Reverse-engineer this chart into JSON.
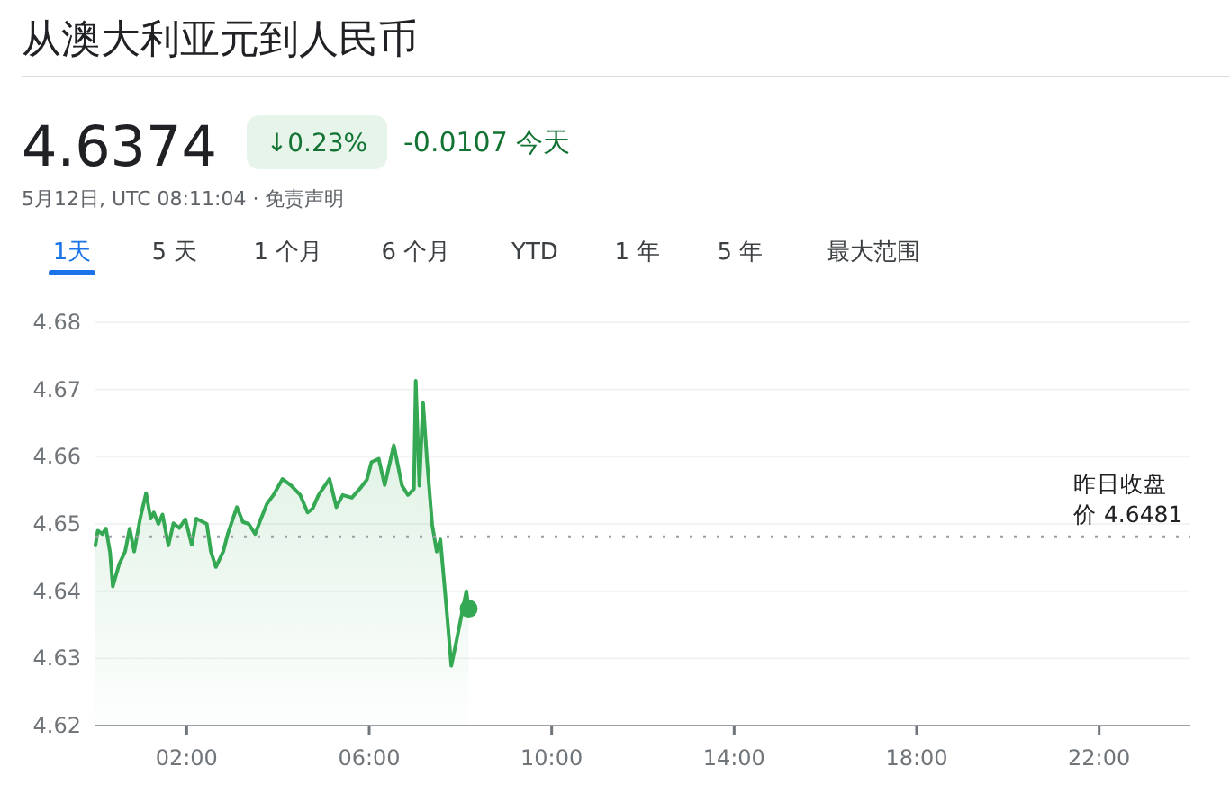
{
  "chart_data": {
    "type": "area",
    "title": "从澳大利亚元到人民币",
    "annotations": [
      "4.6374",
      "↓0.23%",
      "-0.0107 今天",
      "5月12日, UTC 08:11:04 · 免责声明",
      "1天",
      "5 天",
      "1 个月",
      "6 个月",
      "YTD",
      "1 年",
      "5 年",
      "最大范围"
    ],
    "xlim": [
      0,
      24
    ],
    "xticks": [
      {
        "value": 2,
        "label": "02:00"
      },
      {
        "value": 6,
        "label": "06:00"
      },
      {
        "value": 10,
        "label": "10:00"
      },
      {
        "value": 14,
        "label": "14:00"
      },
      {
        "value": 18,
        "label": "18:00"
      },
      {
        "value": 22,
        "label": "22:00"
      }
    ],
    "ylim": [
      4.62,
      4.68
    ],
    "yticks": [
      4.62,
      4.63,
      4.64,
      4.65,
      4.66,
      4.67,
      4.68
    ],
    "grid": "y",
    "ref_lines": [
      {
        "axis": "y",
        "value": 4.6481,
        "label": "昨日收盘价 4.6481",
        "color": "#9aa0a6",
        "line_style": "dotted"
      }
    ],
    "series": [
      {
        "color": "#34a853",
        "x": [
          0,
          0.05,
          0.15,
          0.23,
          0.32,
          0.38,
          0.52,
          0.65,
          0.75,
          0.85,
          0.98,
          1.11,
          1.21,
          1.28,
          1.38,
          1.47,
          1.6,
          1.71,
          1.84,
          1.97,
          2.11,
          2.21,
          2.44,
          2.53,
          2.64,
          2.8,
          2.9,
          3.1,
          3.23,
          3.36,
          3.5,
          3.63,
          3.76,
          3.9,
          4.1,
          4.29,
          4.49,
          4.65,
          4.76,
          4.89,
          5.13,
          5.28,
          5.42,
          5.62,
          5.79,
          5.95,
          6.05,
          6.21,
          6.34,
          6.54,
          6.72,
          6.85,
          6.98,
          7.02,
          7.1,
          7.18,
          7.27,
          7.38,
          7.48,
          7.56,
          7.7,
          7.8,
          7.91,
          8.0,
          8.13,
          8.18
        ],
        "values": [
          4.6468,
          4.649,
          4.6485,
          4.6493,
          4.6458,
          4.6407,
          4.644,
          4.6459,
          4.6493,
          4.6459,
          4.6508,
          4.6546,
          4.6508,
          4.6517,
          4.65,
          4.6514,
          4.6468,
          4.6501,
          4.6494,
          4.6507,
          4.6469,
          4.6508,
          4.65,
          4.6459,
          4.6436,
          4.6459,
          4.6485,
          4.6525,
          4.6503,
          4.65,
          4.6485,
          4.6508,
          4.653,
          4.6543,
          4.6567,
          4.6557,
          4.6543,
          4.6517,
          4.6523,
          4.6543,
          4.6567,
          4.6525,
          4.6543,
          4.6539,
          4.6552,
          4.6566,
          4.6592,
          4.6597,
          4.6558,
          4.6617,
          4.6557,
          4.6543,
          4.6552,
          4.6713,
          4.6557,
          4.6681,
          4.6592,
          4.6499,
          4.6459,
          4.6477,
          4.637,
          4.6289,
          4.6325,
          4.6356,
          4.64,
          4.6374
        ]
      }
    ]
  }
}
